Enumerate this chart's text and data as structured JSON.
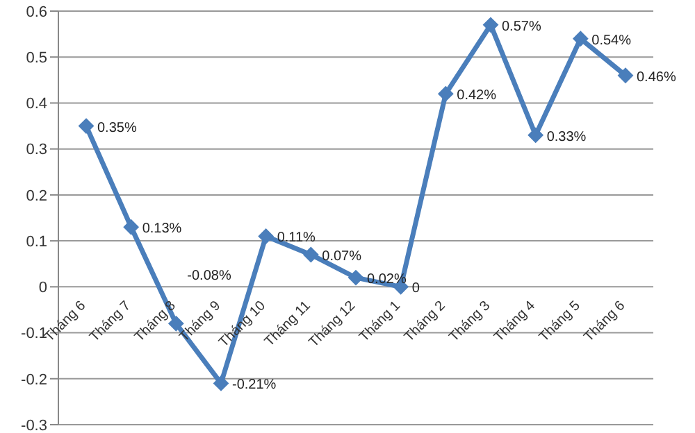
{
  "chart_data": {
    "type": "line",
    "categories": [
      "Tháng 6",
      "Tháng 7",
      "Tháng 8",
      "Tháng 9",
      "Tháng 10",
      "Tháng 11",
      "Tháng 12",
      "Tháng 1",
      "Tháng 2",
      "Tháng 3",
      "Tháng 4",
      "Tháng 5",
      "Tháng 6"
    ],
    "series": [
      {
        "color": "#4a7ebb",
        "values": [
          0.35,
          0.13,
          -0.08,
          -0.21,
          0.11,
          0.07,
          0.02,
          0,
          0.42,
          0.57,
          0.33,
          0.54,
          0.46
        ],
        "value_labels": [
          "0.35%",
          "0.13%",
          "-0.08%",
          "-0.21%",
          "0.11%",
          "0.07%",
          "0.02%",
          "0",
          "0.42%",
          "0.57%",
          "0.33%",
          "0.54%",
          "0.46%"
        ]
      }
    ],
    "ylim": [
      -0.3,
      0.6
    ],
    "yticks": [
      -0.3,
      -0.2,
      -0.1,
      0,
      0.1,
      0.2,
      0.3,
      0.4,
      0.5,
      0.6
    ],
    "grid": "y",
    "marker": "diamond",
    "line_style": "solid"
  }
}
